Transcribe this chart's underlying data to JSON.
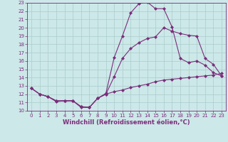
{
  "xlabel": "Windchill (Refroidissement éolien,°C)",
  "line1_x": [
    0,
    1,
    2,
    3,
    4,
    5,
    6,
    7,
    8,
    9,
    10,
    11,
    12,
    13,
    14,
    15,
    16,
    17,
    18,
    19,
    20,
    21,
    22,
    23
  ],
  "line1_y": [
    12.7,
    12.0,
    11.7,
    11.1,
    11.2,
    11.2,
    10.4,
    10.4,
    11.5,
    12.1,
    16.4,
    19.0,
    21.8,
    22.9,
    23.1,
    22.3,
    22.3,
    20.1,
    16.3,
    15.8,
    16.0,
    15.5,
    14.6,
    14.2
  ],
  "line2_x": [
    0,
    1,
    2,
    3,
    4,
    5,
    6,
    7,
    8,
    9,
    10,
    11,
    12,
    13,
    14,
    15,
    16,
    17,
    18,
    19,
    20,
    21,
    22,
    23
  ],
  "line2_y": [
    12.7,
    12.0,
    11.7,
    11.2,
    11.2,
    11.2,
    10.5,
    10.4,
    11.5,
    12.0,
    14.1,
    16.3,
    17.5,
    18.2,
    18.7,
    18.9,
    20.0,
    19.6,
    19.3,
    19.1,
    19.0,
    16.3,
    15.6,
    14.2
  ],
  "line3_x": [
    0,
    1,
    2,
    3,
    4,
    5,
    6,
    7,
    8,
    9,
    10,
    11,
    12,
    13,
    14,
    15,
    16,
    17,
    18,
    19,
    20,
    21,
    22,
    23
  ],
  "line3_y": [
    12.7,
    12.0,
    11.7,
    11.2,
    11.2,
    11.2,
    10.5,
    10.4,
    11.5,
    12.0,
    12.3,
    12.5,
    12.8,
    13.0,
    13.2,
    13.5,
    13.7,
    13.8,
    13.9,
    14.0,
    14.1,
    14.2,
    14.3,
    14.5
  ],
  "line_color": "#7b2d7b",
  "bg_color": "#cce8e8",
  "grid_color": "#aacccc",
  "xlim": [
    -0.5,
    23.5
  ],
  "ylim": [
    10,
    23
  ],
  "xticks": [
    0,
    1,
    2,
    3,
    4,
    5,
    6,
    7,
    8,
    9,
    10,
    11,
    12,
    13,
    14,
    15,
    16,
    17,
    18,
    19,
    20,
    21,
    22,
    23
  ],
  "yticks": [
    10,
    11,
    12,
    13,
    14,
    15,
    16,
    17,
    18,
    19,
    20,
    21,
    22,
    23
  ],
  "tick_fontsize": 5.0,
  "xlabel_fontsize": 6.0,
  "marker": "D",
  "markersize": 2.0,
  "linewidth": 0.8
}
